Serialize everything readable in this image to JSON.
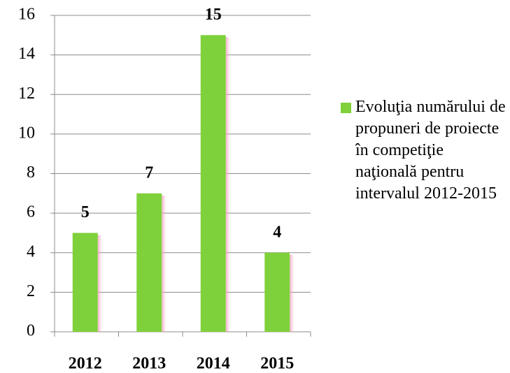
{
  "chart_data": {
    "type": "bar",
    "categories": [
      "2012",
      "2013",
      "2014",
      "2015"
    ],
    "series": [
      {
        "name": "Evoluţia numărului de propuneri de proiecte în competiţie naţională pentru intervalul 2012-2015",
        "color": "#7ed13a",
        "values": [
          5,
          7,
          15,
          4
        ]
      }
    ],
    "ylim": [
      0,
      16
    ],
    "yticks": [
      0,
      2,
      4,
      6,
      8,
      10,
      12,
      14,
      16
    ],
    "grid": true,
    "legend": "right",
    "data_labels": true
  }
}
